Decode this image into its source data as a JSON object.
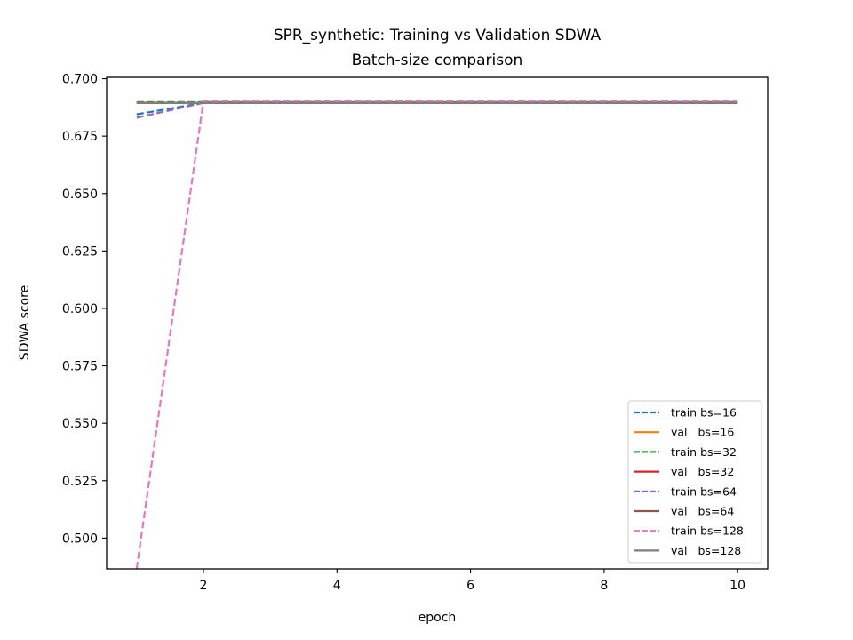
{
  "chart_data": {
    "type": "line",
    "title": "SPR_synthetic: Training vs Validation SDWA",
    "subtitle": "Batch-size comparison",
    "xlabel": "epoch",
    "ylabel": "SDWA score",
    "xlim": [
      0.55,
      10.45
    ],
    "ylim": [
      0.4866,
      0.7006
    ],
    "xticks": [
      2,
      4,
      6,
      8,
      10
    ],
    "yticks": [
      0.5,
      0.525,
      0.55,
      0.575,
      0.6,
      0.625,
      0.65,
      0.675,
      0.7
    ],
    "xtick_labels": [
      "2",
      "4",
      "6",
      "8",
      "10"
    ],
    "ytick_labels": [
      "0.500",
      "0.525",
      "0.550",
      "0.575",
      "0.600",
      "0.625",
      "0.650",
      "0.675",
      "0.700"
    ],
    "grid": false,
    "legend_position": "lower-right",
    "x": [
      1,
      2,
      3,
      4,
      5,
      6,
      7,
      8,
      9,
      10
    ],
    "series": [
      {
        "name": "train bs=16",
        "color": "#1f77b4",
        "dash": true,
        "values": [
          0.6845,
          0.6895,
          0.6895,
          0.6895,
          0.6895,
          0.6895,
          0.6895,
          0.6895,
          0.6895,
          0.6895
        ]
      },
      {
        "name": "val   bs=16",
        "color": "#ff7f0e",
        "dash": false,
        "values": [
          0.6895,
          0.6895,
          0.6895,
          0.6895,
          0.6895,
          0.6895,
          0.6895,
          0.6895,
          0.6895,
          0.6895
        ]
      },
      {
        "name": "train bs=32",
        "color": "#2ca02c",
        "dash": true,
        "values": [
          0.6898,
          0.6898,
          0.6898,
          0.6898,
          0.6898,
          0.6898,
          0.6898,
          0.6898,
          0.6898,
          0.6898
        ]
      },
      {
        "name": "val   bs=32",
        "color": "#d62728",
        "dash": false,
        "values": [
          0.6895,
          0.6895,
          0.6895,
          0.6895,
          0.6895,
          0.6895,
          0.6895,
          0.6895,
          0.6895,
          0.6895
        ]
      },
      {
        "name": "train bs=64",
        "color": "#9467bd",
        "dash": true,
        "values": [
          0.683,
          0.6895,
          0.6895,
          0.6895,
          0.6895,
          0.6895,
          0.6895,
          0.6895,
          0.6895,
          0.6895
        ]
      },
      {
        "name": "val   bs=64",
        "color": "#8c564b",
        "dash": false,
        "values": [
          0.6895,
          0.6895,
          0.6895,
          0.6895,
          0.6895,
          0.6895,
          0.6895,
          0.6895,
          0.6895,
          0.6895
        ]
      },
      {
        "name": "train bs=128",
        "color": "#e377c2",
        "dash": true,
        "values": [
          0.4866,
          0.6902,
          0.6902,
          0.6902,
          0.6902,
          0.6902,
          0.6902,
          0.6902,
          0.6902,
          0.6902
        ]
      },
      {
        "name": "val   bs=128",
        "color": "#7f7f7f",
        "dash": false,
        "values": [
          0.6895,
          0.6895,
          0.6895,
          0.6895,
          0.6895,
          0.6895,
          0.6895,
          0.6895,
          0.6895,
          0.6895
        ]
      }
    ]
  }
}
